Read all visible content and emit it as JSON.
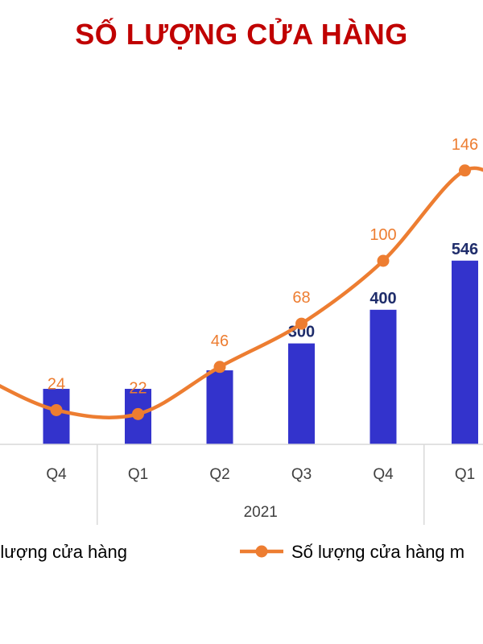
{
  "chart_data": {
    "type": "bar",
    "title": "SỐ LƯỢNG CỬA HÀNG",
    "groups": [
      {
        "label": "",
        "categories": [
          "Q4"
        ]
      },
      {
        "label": "2021",
        "categories": [
          "Q1",
          "Q2",
          "Q3",
          "Q4"
        ]
      },
      {
        "label": "",
        "categories": [
          "Q1"
        ]
      }
    ],
    "categories": [
      "Q4",
      "Q1",
      "Q2",
      "Q3",
      "Q4",
      "Q1"
    ],
    "series": [
      {
        "name": "Số lượng cửa hàng",
        "type": "bar",
        "color": "#3333cc",
        "values": [
          165,
          165,
          220,
          300,
          400,
          546
        ],
        "labels": [
          "",
          "",
          "",
          "300",
          "400",
          "546"
        ]
      },
      {
        "name": "Số lượng cửa hàng m",
        "type": "line",
        "color": "#ed7d31",
        "values": [
          24,
          22,
          46,
          68,
          100,
          146
        ],
        "labels": [
          "24",
          "22",
          "46",
          "68",
          "100",
          "146"
        ]
      }
    ],
    "legend_position": "bottom",
    "grid": false
  }
}
